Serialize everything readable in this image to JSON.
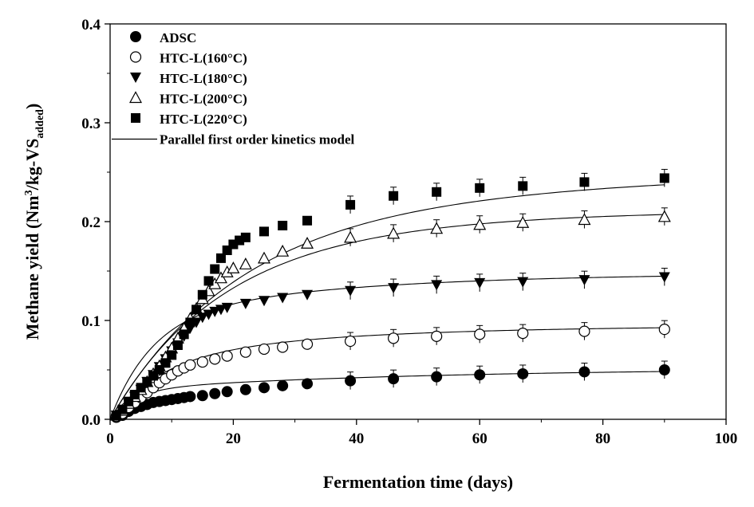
{
  "chart_data": {
    "type": "scatter",
    "xlabel": "Fermentation time (days)",
    "ylabel": {
      "prefix": "Methane yield (Nm",
      "sup": "3",
      "mid": "/kg-VS",
      "sub": "added",
      "suffix": ")"
    },
    "xlim": [
      0,
      100
    ],
    "ylim": [
      0,
      0.4
    ],
    "x_ticks": [
      "0",
      "20",
      "40",
      "60",
      "80",
      "100"
    ],
    "y_ticks": [
      "0.0",
      "0.1",
      "0.2",
      "0.3",
      "0.4"
    ],
    "grid": false,
    "legend_position": "top-left",
    "series": [
      {
        "name": "ADSC",
        "marker": "filled-circle",
        "color": "#000000",
        "x": [
          1,
          2,
          3,
          4,
          5,
          6,
          7,
          8,
          9,
          10,
          11,
          12,
          13,
          15,
          17,
          19,
          22,
          25,
          28,
          32,
          39,
          46,
          53,
          60,
          67,
          77,
          90
        ],
        "y": [
          0.002,
          0.004,
          0.008,
          0.011,
          0.013,
          0.015,
          0.017,
          0.018,
          0.019,
          0.02,
          0.021,
          0.022,
          0.023,
          0.024,
          0.026,
          0.028,
          0.03,
          0.032,
          0.034,
          0.036,
          0.039,
          0.041,
          0.043,
          0.045,
          0.046,
          0.048,
          0.05
        ]
      },
      {
        "name": "HTC-L(160°C)",
        "marker": "open-circle",
        "color": "#000000",
        "x": [
          1,
          2,
          3,
          4,
          5,
          6,
          7,
          8,
          9,
          10,
          11,
          12,
          13,
          15,
          17,
          19,
          22,
          25,
          28,
          32,
          39,
          46,
          53,
          60,
          67,
          77,
          90
        ],
        "y": [
          0.003,
          0.006,
          0.012,
          0.017,
          0.022,
          0.027,
          0.032,
          0.037,
          0.041,
          0.045,
          0.049,
          0.052,
          0.055,
          0.058,
          0.061,
          0.064,
          0.068,
          0.071,
          0.073,
          0.076,
          0.079,
          0.082,
          0.084,
          0.086,
          0.087,
          0.089,
          0.091
        ]
      },
      {
        "name": "HTC-L(180°C)",
        "marker": "filled-triangle-down",
        "color": "#000000",
        "x": [
          1,
          2,
          3,
          4,
          5,
          6,
          7,
          8,
          9,
          10,
          11,
          12,
          13,
          14,
          15,
          16,
          17,
          18,
          19,
          22,
          25,
          28,
          32,
          39,
          46,
          53,
          60,
          67,
          77,
          90
        ],
        "y": [
          0.004,
          0.009,
          0.016,
          0.023,
          0.03,
          0.038,
          0.045,
          0.053,
          0.061,
          0.069,
          0.077,
          0.084,
          0.092,
          0.098,
          0.103,
          0.106,
          0.109,
          0.111,
          0.113,
          0.117,
          0.12,
          0.123,
          0.126,
          0.13,
          0.133,
          0.136,
          0.138,
          0.139,
          0.141,
          0.144
        ]
      },
      {
        "name": "HTC-L(200°C)",
        "marker": "open-triangle-up",
        "color": "#000000",
        "x": [
          1,
          2,
          3,
          4,
          5,
          6,
          7,
          8,
          9,
          10,
          11,
          12,
          13,
          14,
          15,
          16,
          17,
          18,
          19,
          20,
          22,
          25,
          28,
          32,
          39,
          46,
          53,
          60,
          67,
          77,
          90
        ],
        "y": [
          0.004,
          0.009,
          0.016,
          0.023,
          0.03,
          0.038,
          0.046,
          0.054,
          0.063,
          0.072,
          0.082,
          0.092,
          0.102,
          0.112,
          0.122,
          0.13,
          0.137,
          0.143,
          0.149,
          0.153,
          0.157,
          0.163,
          0.17,
          0.178,
          0.184,
          0.188,
          0.193,
          0.197,
          0.199,
          0.202,
          0.205
        ]
      },
      {
        "name": "HTC-L(220°C)",
        "marker": "filled-square",
        "color": "#000000",
        "x": [
          1,
          2,
          3,
          4,
          5,
          6,
          7,
          8,
          9,
          10,
          11,
          12,
          13,
          14,
          15,
          16,
          17,
          18,
          19,
          20,
          21,
          22,
          25,
          28,
          32,
          39,
          46,
          53,
          60,
          67,
          77,
          90
        ],
        "y": [
          0.004,
          0.01,
          0.018,
          0.025,
          0.032,
          0.038,
          0.044,
          0.05,
          0.057,
          0.065,
          0.075,
          0.086,
          0.098,
          0.111,
          0.126,
          0.14,
          0.152,
          0.163,
          0.171,
          0.177,
          0.181,
          0.184,
          0.19,
          0.196,
          0.201,
          0.217,
          0.226,
          0.23,
          0.234,
          0.236,
          0.24,
          0.244
        ]
      },
      {
        "name": "Parallel first order kinetics model",
        "marker": "line",
        "color": "#000000",
        "curves": [
          {
            "A": 0.03,
            "k1": 0.25,
            "B": 0.022,
            "k2": 0.02
          },
          {
            "A": 0.06,
            "k1": 0.12,
            "B": 0.035,
            "k2": 0.03
          },
          {
            "A": 0.1,
            "k1": 0.15,
            "B": 0.048,
            "k2": 0.03
          },
          {
            "A": 0.15,
            "k1": 0.06,
            "B": 0.062,
            "k2": 0.03
          },
          {
            "A": 0.195,
            "k1": 0.05,
            "B": 0.06,
            "k2": 0.015
          }
        ]
      }
    ]
  }
}
